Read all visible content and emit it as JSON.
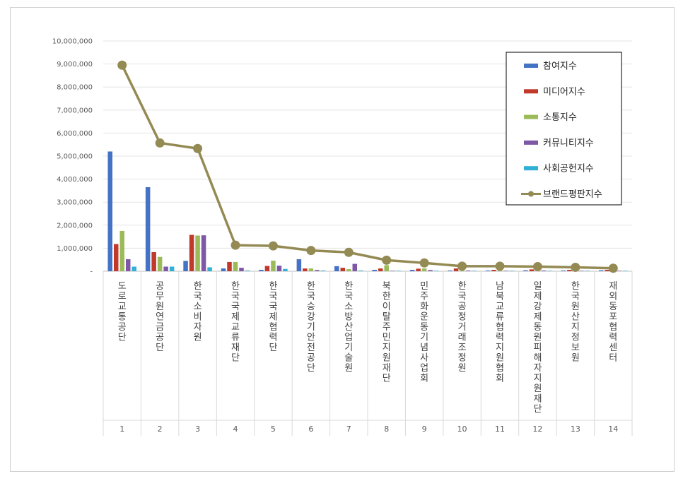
{
  "chart_data": {
    "type": "bar",
    "title": "",
    "xlabel": "",
    "ylabel": "",
    "ylim": [
      0,
      10000000
    ],
    "yticks": [
      0,
      1000000,
      2000000,
      3000000,
      4000000,
      5000000,
      6000000,
      7000000,
      8000000,
      9000000,
      10000000
    ],
    "ytick_labels": [
      "-",
      "1,000,000",
      "2,000,000",
      "3,000,000",
      "4,000,000",
      "5,000,000",
      "6,000,000",
      "7,000,000",
      "8,000,000",
      "9,000,000",
      "10,000,000"
    ],
    "grid": true,
    "legend_position": "top-right",
    "rank_labels": [
      "1",
      "2",
      "3",
      "4",
      "5",
      "6",
      "7",
      "8",
      "9",
      "10",
      "11",
      "12",
      "13",
      "14"
    ],
    "categories": [
      "도로교통공단",
      "공무원연금공단",
      "한국소비자원",
      "한국국제교류재단",
      "한국국제협력단",
      "한국승강기안전공단",
      "한국소방산업기술원",
      "북한이탈주민지원재단",
      "민주화운동기념사업회",
      "한국공정거래조정원",
      "남북교류협력지원협회",
      "일제강제동원피해자지원재단",
      "한국원산지정보원",
      "재외동포협력센터"
    ],
    "series": [
      {
        "name": "참여지수",
        "color": "#4472c4",
        "kind": "bar",
        "values": [
          5200000,
          3650000,
          450000,
          120000,
          60000,
          520000,
          220000,
          60000,
          60000,
          30000,
          30000,
          40000,
          30000,
          40000
        ]
      },
      {
        "name": "미디어지수",
        "color": "#c0392b",
        "kind": "bar",
        "values": [
          1180000,
          830000,
          1580000,
          400000,
          230000,
          120000,
          150000,
          120000,
          110000,
          120000,
          60000,
          80000,
          60000,
          60000
        ]
      },
      {
        "name": "소통지수",
        "color": "#9bbb59",
        "kind": "bar",
        "values": [
          1750000,
          620000,
          1550000,
          400000,
          460000,
          120000,
          90000,
          260000,
          120000,
          30000,
          40000,
          30000,
          30000,
          30000
        ]
      },
      {
        "name": "커뮤니티지수",
        "color": "#7e57a6",
        "kind": "bar",
        "values": [
          520000,
          200000,
          1560000,
          150000,
          240000,
          50000,
          320000,
          20000,
          50000,
          30000,
          20000,
          30000,
          20000,
          20000
        ]
      },
      {
        "name": "사회공헌지수",
        "color": "#31b0d5",
        "kind": "bar",
        "values": [
          200000,
          200000,
          170000,
          30000,
          100000,
          30000,
          30000,
          20000,
          20000,
          20000,
          20000,
          20000,
          20000,
          20000
        ]
      },
      {
        "name": "브랜드평판지수",
        "color": "#948a54",
        "kind": "line",
        "values": [
          8950000,
          5570000,
          5330000,
          1130000,
          1100000,
          900000,
          820000,
          480000,
          360000,
          220000,
          220000,
          200000,
          170000,
          130000
        ]
      }
    ]
  }
}
